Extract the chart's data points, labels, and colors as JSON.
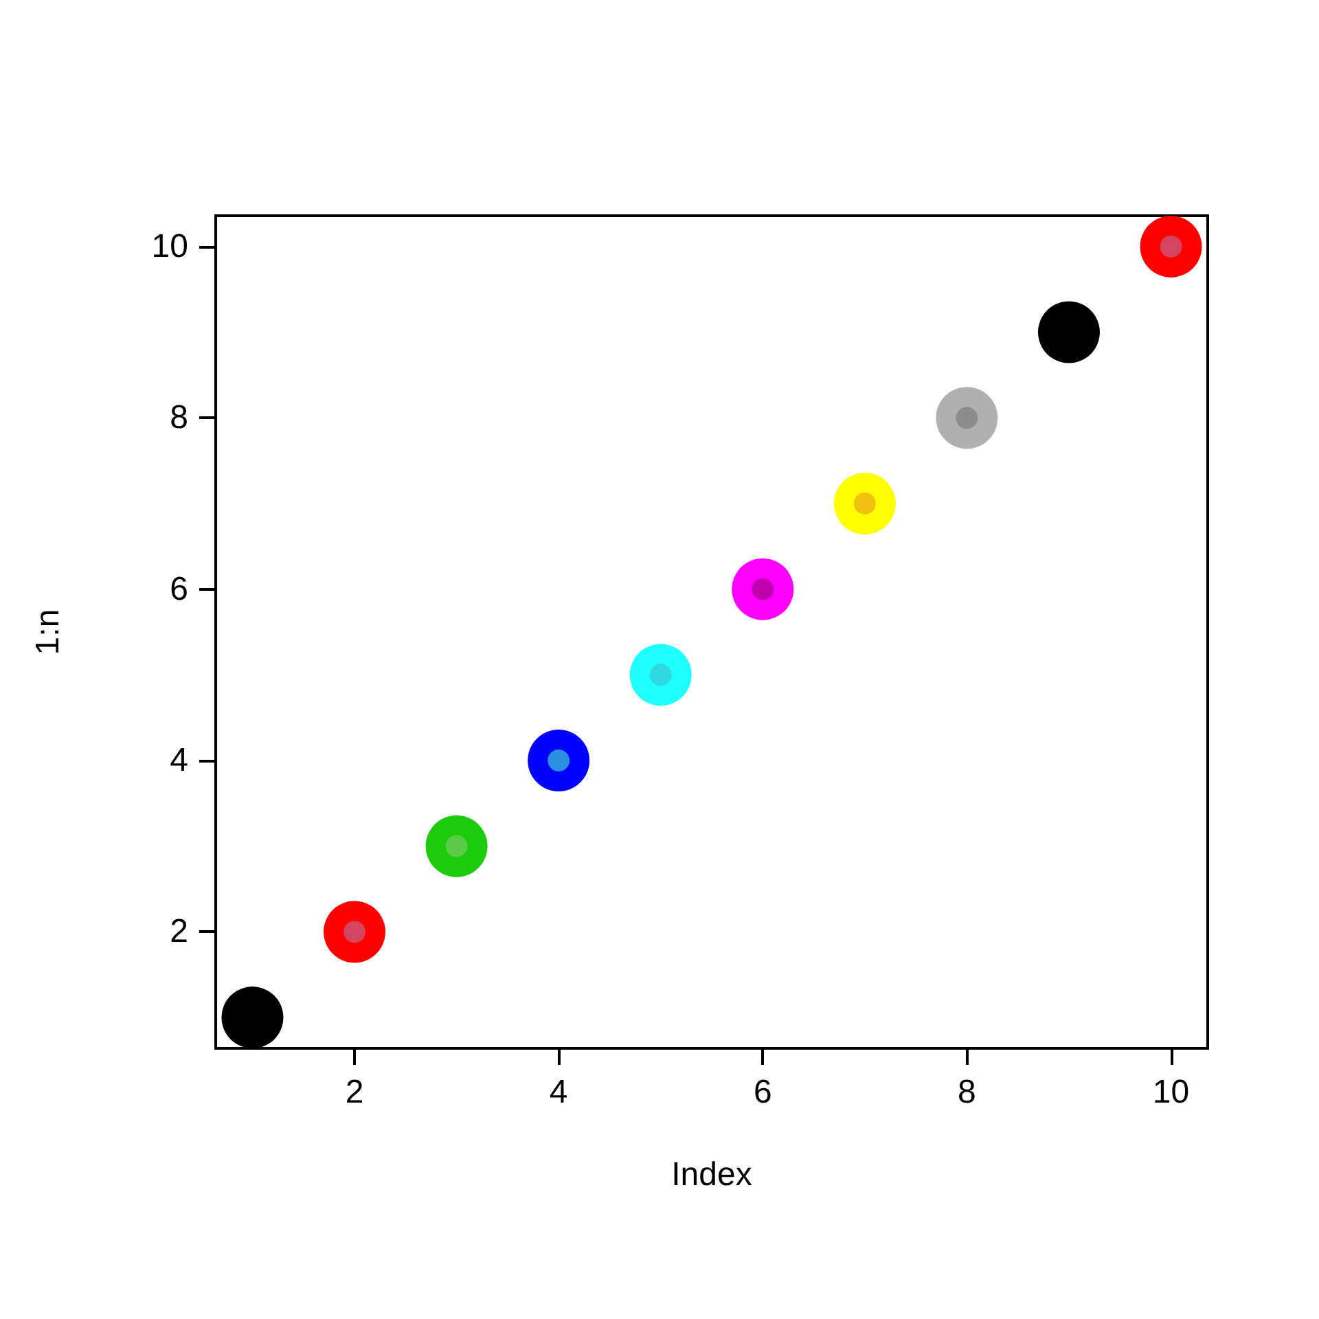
{
  "chart_data": {
    "type": "scatter",
    "xlabel": "Index",
    "ylabel": "1:n",
    "marker": "circle",
    "grid": false,
    "xlim": [
      0.64,
      10.36
    ],
    "xticks": [
      2,
      4,
      6,
      8,
      10
    ],
    "ylim": [
      0.64,
      10.36
    ],
    "yticks": [
      2,
      4,
      6,
      8,
      10
    ],
    "series": [
      {
        "x": [
          1,
          2,
          3,
          4,
          5,
          6,
          7,
          8,
          9,
          10
        ],
        "values": [
          1,
          2,
          3,
          4,
          5,
          6,
          7,
          8,
          9,
          10
        ],
        "colors": [
          "#000000",
          "#ff0000",
          "#1ccb0b",
          "#0000ff",
          "#20ffff",
          "#ff00ff",
          "#ffff00",
          "#b0b0b0",
          "#000000",
          "#ff0000"
        ]
      },
      {
        "x": [
          2,
          3,
          4,
          5,
          6,
          7,
          8,
          10
        ],
        "values": [
          2,
          3,
          4,
          5,
          6,
          7,
          8,
          10
        ],
        "colors": [
          "#d4455f",
          "#5ccb48",
          "#2a8fe0",
          "#2ed8dc",
          "#c000b0",
          "#f0c010",
          "#8c8c8c",
          "#d4455f"
        ]
      }
    ]
  }
}
